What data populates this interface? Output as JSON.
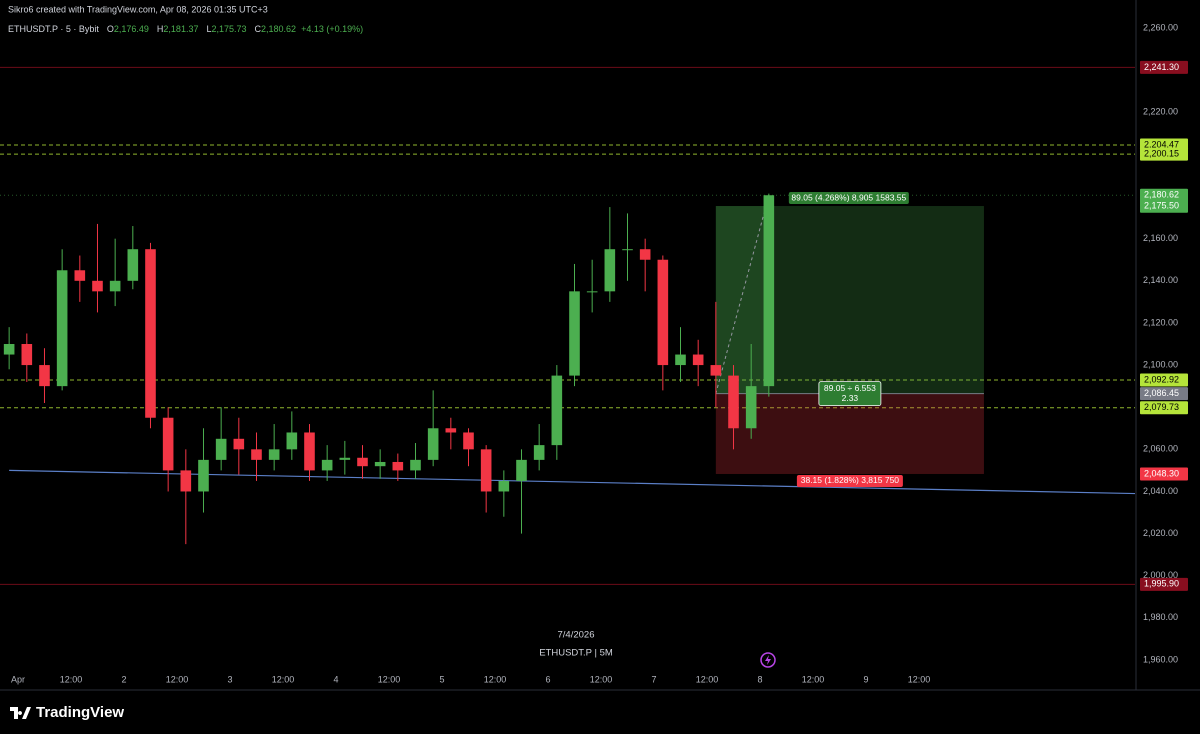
{
  "chart_data": {
    "type": "candlestick",
    "header": "Sikro6 created with TradingView.com, Apr 08, 2026 01:35 UTC+3",
    "legend": {
      "symbol": "ETHUSDT.P · 5 · Bybit",
      "ohlc": [
        {
          "key": "O",
          "value": "2,176.49"
        },
        {
          "key": "H",
          "value": "2,181.37"
        },
        {
          "key": "L",
          "value": "2,175.73"
        },
        {
          "key": "C",
          "value": "2,180.62"
        }
      ],
      "change": "+4.13 (+0.19%)"
    },
    "up_color": "#4caf50",
    "down_color": "#f23645",
    "x": [
      -2,
      2,
      6,
      10,
      14,
      18,
      22,
      26,
      30,
      34,
      38,
      42,
      46,
      50,
      54,
      58,
      62,
      66,
      70,
      74,
      78,
      82,
      86,
      90,
      94,
      98,
      102,
      106,
      110,
      114,
      118,
      122,
      126,
      130,
      134,
      138,
      142,
      146,
      150,
      154,
      158,
      162,
      166,
      170
    ],
    "open": [
      2105,
      2110,
      2100,
      2090,
      2145,
      2140,
      2135,
      2140,
      2155,
      2075,
      2050,
      2040,
      2055,
      2065,
      2060,
      2055,
      2060,
      2068,
      2050,
      2055,
      2056,
      2052,
      2054,
      2050,
      2055,
      2070,
      2068,
      2060,
      2040,
      2045,
      2055,
      2062,
      2095,
      2135,
      2135,
      2155,
      2155,
      2150,
      2100,
      2105,
      2100,
      2095,
      2070,
      2090
    ],
    "high": [
      2118,
      2115,
      2108,
      2155,
      2152,
      2167,
      2160,
      2166,
      2158,
      2080,
      2060,
      2070,
      2080,
      2075,
      2068,
      2072,
      2078,
      2072,
      2062,
      2064,
      2062,
      2060,
      2058,
      2063,
      2088,
      2075,
      2070,
      2062,
      2050,
      2060,
      2072,
      2100,
      2148,
      2150,
      2175,
      2172,
      2160,
      2152,
      2118,
      2112,
      2130,
      2100,
      2110,
      2181.37
    ],
    "low": [
      2098,
      2092,
      2082,
      2088,
      2130,
      2125,
      2128,
      2136,
      2070,
      2040,
      2015,
      2030,
      2050,
      2048,
      2045,
      2050,
      2055,
      2045,
      2045,
      2048,
      2046,
      2046,
      2045,
      2046,
      2052,
      2060,
      2052,
      2030,
      2028,
      2020,
      2050,
      2055,
      2090,
      2125,
      2130,
      2140,
      2135,
      2088,
      2092,
      2090,
      2080,
      2060,
      2065,
      2085
    ],
    "close": [
      2110,
      2100,
      2090,
      2145,
      2140,
      2135,
      2140,
      2155,
      2075,
      2050,
      2040,
      2055,
      2065,
      2060,
      2055,
      2060,
      2068,
      2050,
      2055,
      2056,
      2052,
      2054,
      2050,
      2055,
      2070,
      2068,
      2060,
      2040,
      2045,
      2055,
      2062,
      2095,
      2135,
      2135,
      2155,
      2155,
      2150,
      2100,
      2105,
      2100,
      2095,
      2070,
      2090,
      2180.62
    ],
    "xlim": [
      -4.07,
      252.9
    ],
    "ylim": [
      1954.3,
      2273.3
    ],
    "xticks": [
      {
        "value": 0,
        "label": "Apr"
      },
      {
        "value": 12,
        "label": "12:00"
      },
      {
        "value": 24,
        "label": "2"
      },
      {
        "value": 36,
        "label": "12:00"
      },
      {
        "value": 48,
        "label": "3"
      },
      {
        "value": 60,
        "label": "12:00"
      },
      {
        "value": 72,
        "label": "4"
      },
      {
        "value": 84,
        "label": "12:00"
      },
      {
        "value": 96,
        "label": "5"
      },
      {
        "value": 108,
        "label": "12:00"
      },
      {
        "value": 120,
        "label": "6"
      },
      {
        "value": 132,
        "label": "12:00"
      },
      {
        "value": 144,
        "label": "7"
      },
      {
        "value": 156,
        "label": "12:00"
      },
      {
        "value": 168,
        "label": "8"
      },
      {
        "value": 180,
        "label": "12:00"
      },
      {
        "value": 192,
        "label": "9"
      },
      {
        "value": 204,
        "label": "12:00"
      }
    ],
    "yticks": [
      {
        "value": 2260,
        "label": "2,260.00"
      },
      {
        "value": 2220,
        "label": "2,220.00"
      },
      {
        "value": 2160,
        "label": "2,160.00"
      },
      {
        "value": 2140,
        "label": "2,140.00"
      },
      {
        "value": 2120,
        "label": "2,120.00"
      },
      {
        "value": 2100,
        "label": "2,100.00"
      },
      {
        "value": 2060,
        "label": "2,060.00"
      },
      {
        "value": 2040,
        "label": "2,040.00"
      },
      {
        "value": 2020,
        "label": "2,020.00"
      },
      {
        "value": 2000,
        "label": "2,000.00"
      },
      {
        "value": 1980,
        "label": "1,980.00"
      },
      {
        "value": 1960,
        "label": "1,960.00"
      }
    ],
    "price_labels": [
      {
        "value": 2241.3,
        "label": "2,241.30",
        "color": "#880e1f",
        "line": "solid"
      },
      {
        "value": 2204.47,
        "label": "2,204.47",
        "color": "#b5e43a",
        "line": "dashed"
      },
      {
        "value": 2200.15,
        "label": "2,200.15",
        "color": "#b5e43a",
        "line": "dashed"
      },
      {
        "value": 2180.62,
        "label": "2,180.62",
        "color": "#4caf50",
        "line": "dotted",
        "countdown": "04:33"
      },
      {
        "value": 2175.5,
        "label": "2,175.50",
        "color": "#4caf50"
      },
      {
        "value": 2092.92,
        "label": "2,092.92",
        "color": "#b5e43a",
        "line": "dashed"
      },
      {
        "value": 2086.45,
        "label": "2,086.45",
        "color": "#787b86"
      },
      {
        "value": 2079.73,
        "label": "2,079.73",
        "color": "#b5e43a",
        "line": "dashed"
      },
      {
        "value": 2048.3,
        "label": "2,048.30",
        "color": "#f23645"
      },
      {
        "value": 1995.9,
        "label": "1,995.90",
        "color": "#880e1f",
        "line": "solid"
      }
    ],
    "trendline": {
      "x": [
        -2,
        252.9
      ],
      "y": [
        2050,
        2039
      ],
      "color": "#5b7fc7"
    },
    "position": {
      "x": [
        158,
        218.7
      ],
      "entry": 2086.45,
      "target": 2175.5,
      "stop": 2048.3,
      "target_label": "89.05 (4.268%) 8,905 1583.55",
      "ratio_label": [
        "89.05 ÷ 6.553",
        "2.33"
      ],
      "stop_label": "38.15 (1.828%) 3,815 750"
    },
    "date_label": "7/4/2026",
    "footer_symbol": "ETHUSDT.P | 5M",
    "brand": "TradingView"
  }
}
